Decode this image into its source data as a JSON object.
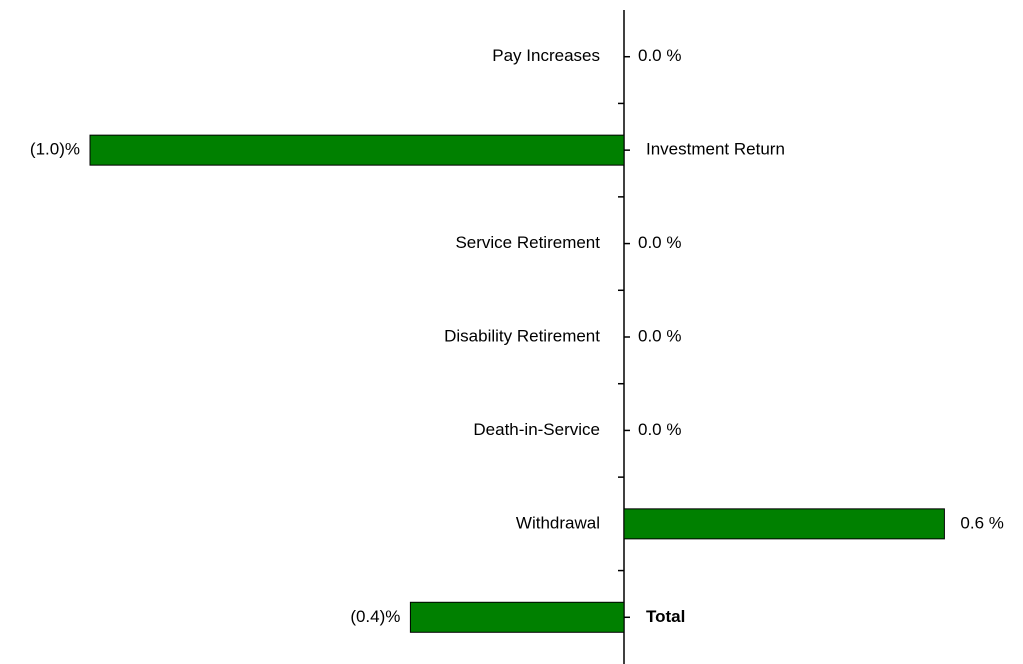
{
  "chart_data": {
    "type": "hbar",
    "categories": [
      "Pay Increases",
      "Investment Return",
      "Service Retirement",
      "Disability Retirement",
      "Death-in-Service",
      "Withdrawal",
      "Total"
    ],
    "values": [
      0.0,
      -1.0,
      0.0,
      0.0,
      0.0,
      0.6,
      -0.4
    ],
    "value_labels": [
      "0.0 %",
      "(1.0)%",
      "0.0 %",
      "0.0 %",
      "0.0 %",
      "0.6 %",
      "(0.4)%"
    ],
    "color": "#008000"
  }
}
